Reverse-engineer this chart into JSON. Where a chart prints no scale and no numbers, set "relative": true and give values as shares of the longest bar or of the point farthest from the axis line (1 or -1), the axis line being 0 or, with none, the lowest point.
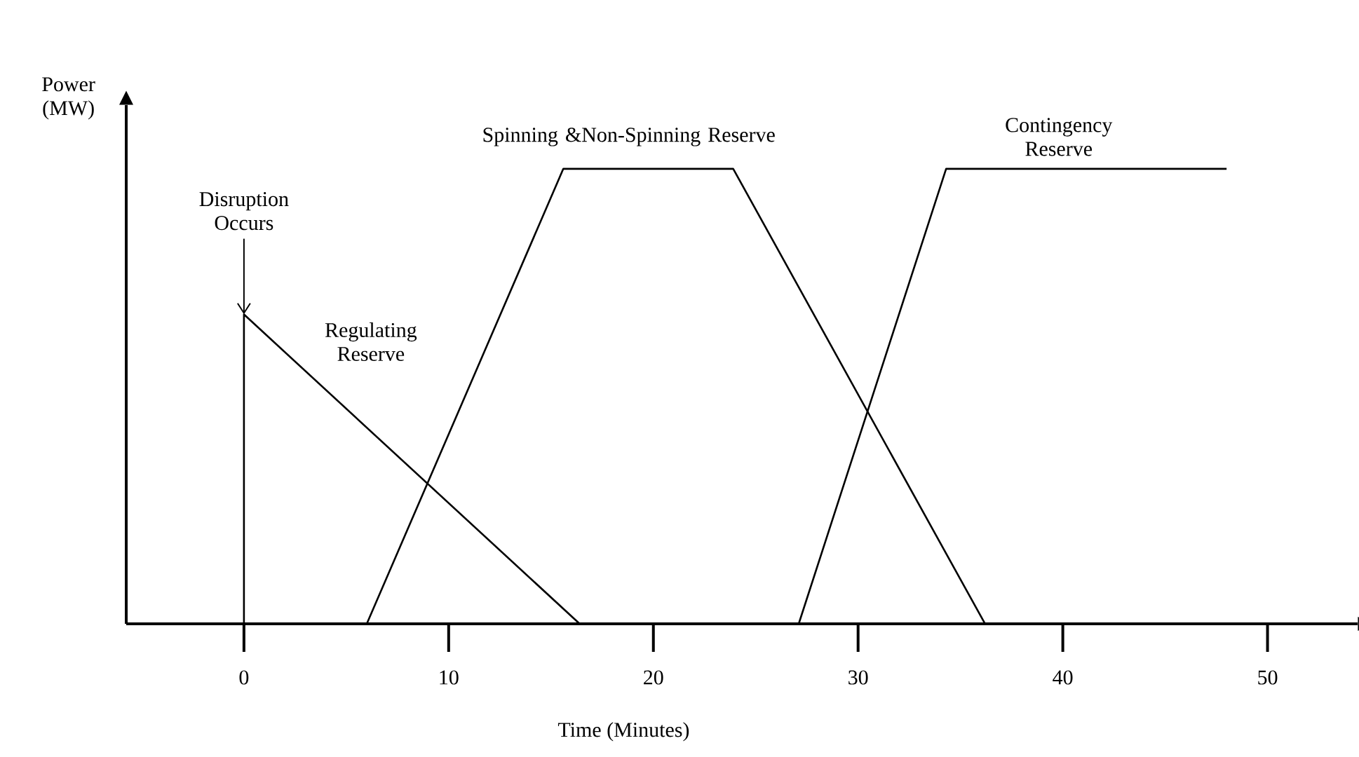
{
  "chart_data": {
    "type": "line",
    "relative": true,
    "xlabel": "Time (Minutes)",
    "ylabel": "Power (MW)",
    "xlim": [
      -5.75,
      54.4
    ],
    "xticks": [
      0,
      10,
      20,
      30,
      40,
      50
    ],
    "grid": false,
    "legend": false,
    "marker": "none",
    "line_style": "solid",
    "series": [
      {
        "name": "Regulating Reserve",
        "color": "#000000",
        "x": [
          0,
          0,
          16.4
        ],
        "values": [
          0,
          0.68,
          0
        ]
      },
      {
        "name": "Spinning &Non-Spinning Reserve",
        "color": "#000000",
        "x": [
          6.0,
          15.6,
          23.9,
          36.2
        ],
        "values": [
          0,
          1,
          1,
          0
        ]
      },
      {
        "name": "Contingency Reserve",
        "color": "#000000",
        "x": [
          27.1,
          34.3,
          48.0
        ],
        "values": [
          0,
          1,
          1
        ]
      }
    ],
    "annotations": [
      {
        "text": "Disruption Occurs",
        "x": 0,
        "y": 0.68
      }
    ]
  }
}
